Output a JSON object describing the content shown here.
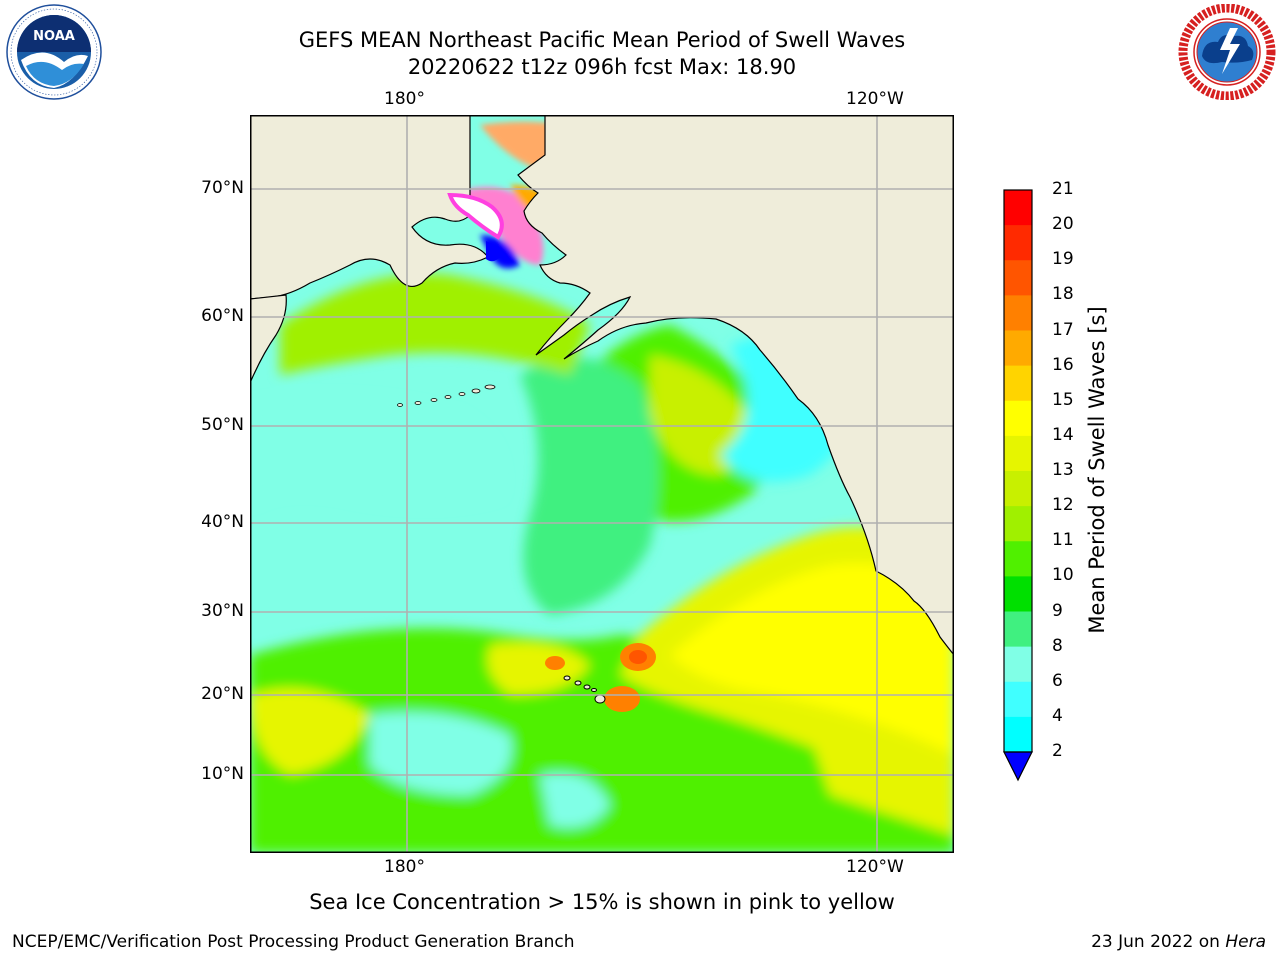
{
  "header": {
    "title_line1": "GEFS MEAN Northeast Pacific Mean Period of Swell Waves",
    "title_line2": "20220622 t12z 096h fcst   Max: 18.90"
  },
  "logos": {
    "left": "noaa-logo",
    "left_text": "NOAA",
    "right": "nws-logo"
  },
  "axes": {
    "lon_top": [
      "180°",
      "120°W"
    ],
    "lon_bottom": [
      "180°",
      "120°W"
    ],
    "lat": [
      "70°N",
      "60°N",
      "50°N",
      "40°N",
      "30°N",
      "20°N",
      "10°N"
    ]
  },
  "colorbar": {
    "label": "Mean Period of Swell Waves [s]",
    "ticks": [
      "21",
      "20",
      "19",
      "18",
      "17",
      "16",
      "15",
      "14",
      "13",
      "12",
      "11",
      "10",
      "9",
      "8",
      "6",
      "4",
      "2"
    ],
    "colors": [
      "#ff0000",
      "#ff2a00",
      "#ff5500",
      "#ff8000",
      "#ffaa00",
      "#ffd400",
      "#ffff00",
      "#e6f500",
      "#c8f000",
      "#a0f000",
      "#50f000",
      "#00e000",
      "#40f080",
      "#80ffe6",
      "#40ffff",
      "#00ffff",
      "#00e6ff",
      "#0080ff",
      "#0000ff"
    ],
    "extend": "min",
    "under_color": "#0000ff",
    "land_color": "#efedda",
    "grid_color": "#b0b0b0"
  },
  "footer": {
    "note": "Sea Ice Concentration > 15% is shown in pink to yellow",
    "credit": "NCEP/EMC/Verification Post Processing Product Generation Branch",
    "date": "23 Jun 2022 on ",
    "system": "Hera"
  }
}
